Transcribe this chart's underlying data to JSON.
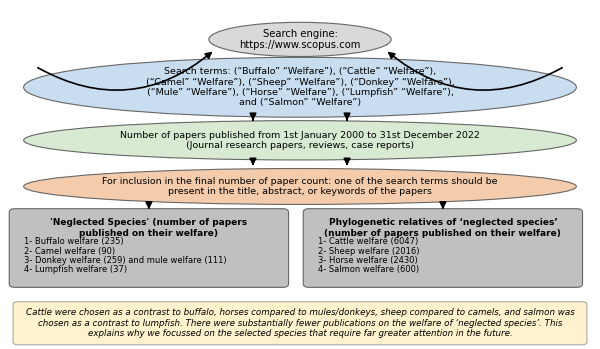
{
  "search_engine_text": "Search engine:\nhttps://www.scopus.com",
  "search_terms_text": "Search terms: (“Buffalo” “Welfare”), (“Cattle” “Welfare”),\n(“Camel” “Welfare”), (“Sheep” “Welfare”), (“Donkey” “Welfare”),\n(“Mule” “Welfare”), (“Horse” “Welfare”), (“Lumpfish” “Welfare”),\nand (“Salmon” “Welfare”)",
  "papers_published_text": "Number of papers published from 1st January 2000 to 31st December 2022\n(Journal research papers, reviews, case reports)",
  "inclusion_text": "For inclusion in the final number of paper count: one of the search terms should be\npresent in the title, abstract, or keywords of the papers",
  "neglected_title": "'Neglected Species' (number of papers\npublished on their welfare)",
  "neglected_items": [
    "1- Buffalo welfare (235)",
    "2- Camel welfare (90)",
    "3- Donkey welfare (259) and mule welfare (111)",
    "4- Lumpfish welfare (37)"
  ],
  "phylo_title": "Phylogenetic relatives of ‘neglected species’\n(number of papers published on their welfare)",
  "phylo_items": [
    "1- Cattle welfare (6047)",
    "2- Sheep welfare (2016)",
    "3- Horse welfare (2430)",
    "4- Salmon welfare (600)"
  ],
  "footnote_text": "Cattle were chosen as a contrast to buffalo, horses compared to mules/donkeys, sheep compared to camels, and salmon was\nchosen as a contrast to lumpfish. There were substantially fewer publications on the welfare of ‘neglected species’. This\nexplains why we focussed on the selected species that require far greater attention in the future.",
  "color_search_engine": "#d9d9d9",
  "color_search_terms": "#c9ddf0",
  "color_papers_published": "#d9ead3",
  "color_inclusion": "#f4ccac",
  "color_neglected_box": "#c0c0c0",
  "color_phylo_box": "#c0c0c0",
  "color_footnote": "#fff2cc",
  "background_color": "#ffffff"
}
